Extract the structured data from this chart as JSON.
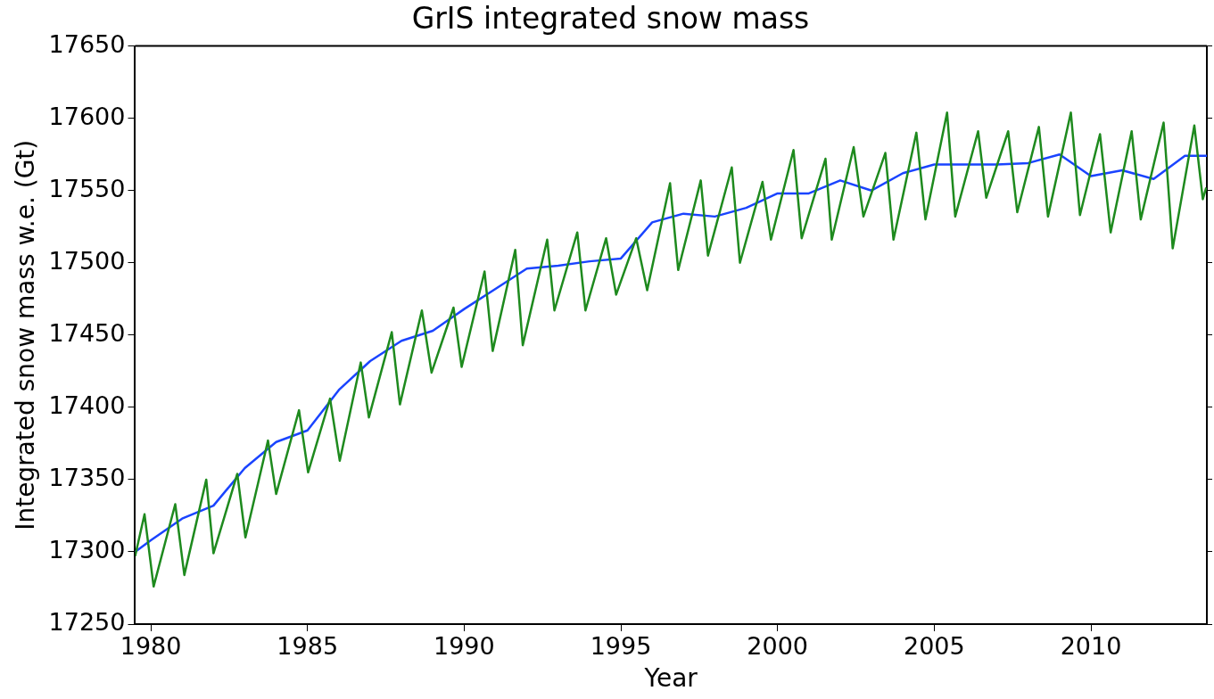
{
  "chart_data": {
    "type": "line",
    "title": "GrIS integrated snow mass",
    "xlabel": "Year",
    "ylabel": "Integrated snow mass w.e. (Gt)",
    "xlim": [
      1979.5,
      2013.7
    ],
    "xticks": [
      1980,
      1985,
      1990,
      1995,
      2000,
      2005,
      2010
    ],
    "ylim": [
      17250,
      17650
    ],
    "yticks": [
      17250,
      17300,
      17350,
      17400,
      17450,
      17500,
      17550,
      17600,
      17650
    ],
    "grid": false,
    "legend": false,
    "marker": "none",
    "line_style": "solid",
    "series": [
      {
        "color": "#1e8a1e",
        "x": [
          1979.5,
          1979.8,
          1980.09,
          1980.78,
          1981.07,
          1981.77,
          1982.0,
          1982.76,
          1983.02,
          1983.74,
          1984.0,
          1984.73,
          1985.02,
          1985.72,
          1986.03,
          1986.7,
          1986.96,
          1987.69,
          1987.95,
          1988.65,
          1988.96,
          1989.66,
          1989.92,
          1990.65,
          1990.91,
          1991.63,
          1991.87,
          1992.65,
          1992.88,
          1993.61,
          1993.87,
          1994.53,
          1994.85,
          1995.49,
          1995.84,
          1996.57,
          1996.83,
          1997.55,
          1997.78,
          1998.54,
          1998.8,
          1999.52,
          1999.79,
          2000.51,
          2000.77,
          2001.53,
          2001.73,
          2002.43,
          2002.74,
          2003.44,
          2003.7,
          2004.43,
          2004.72,
          2005.41,
          2005.67,
          2006.4,
          2006.66,
          2007.36,
          2007.65,
          2008.34,
          2008.63,
          2009.36,
          2009.65,
          2010.29,
          2010.63,
          2011.3,
          2011.59,
          2012.32,
          2012.61,
          2013.3,
          2013.57,
          2013.68
        ],
        "values": [
          17297,
          17326,
          17276,
          17333,
          17284,
          17350,
          17299,
          17354,
          17310,
          17377,
          17340,
          17398,
          17355,
          17406,
          17363,
          17431,
          17393,
          17452,
          17402,
          17467,
          17424,
          17469,
          17428,
          17494,
          17439,
          17509,
          17443,
          17516,
          17467,
          17521,
          17467,
          17517,
          17478,
          17517,
          17481,
          17555,
          17495,
          17557,
          17505,
          17566,
          17500,
          17556,
          17516,
          17578,
          17517,
          17572,
          17516,
          17580,
          17532,
          17576,
          17516,
          17590,
          17530,
          17604,
          17532,
          17591,
          17545,
          17591,
          17535,
          17594,
          17532,
          17604,
          17533,
          17589,
          17521,
          17591,
          17530,
          17597,
          17510,
          17595,
          17544,
          17552
        ]
      },
      {
        "color": "#1a44ff",
        "x": [
          1979.5,
          1980,
          1981,
          1982,
          1983,
          1984,
          1985,
          1986,
          1987,
          1988,
          1989,
          1990,
          1991,
          1992,
          1993,
          1994,
          1995,
          1996,
          1997,
          1998,
          1999,
          2000,
          2001,
          2002,
          2003,
          2004,
          2005,
          2006,
          2007,
          2008,
          2009,
          2010,
          2011,
          2012,
          2013,
          2013.7
        ],
        "values": [
          17300,
          17308,
          17323,
          17332,
          17358,
          17376,
          17384,
          17412,
          17432,
          17446,
          17453,
          17468,
          17482,
          17496,
          17498,
          17501,
          17503,
          17528,
          17534,
          17532,
          17538,
          17548,
          17548,
          17557,
          17550,
          17562,
          17568,
          17568,
          17568,
          17569,
          17575,
          17560,
          17564,
          17558,
          17574,
          17574
        ]
      }
    ]
  }
}
